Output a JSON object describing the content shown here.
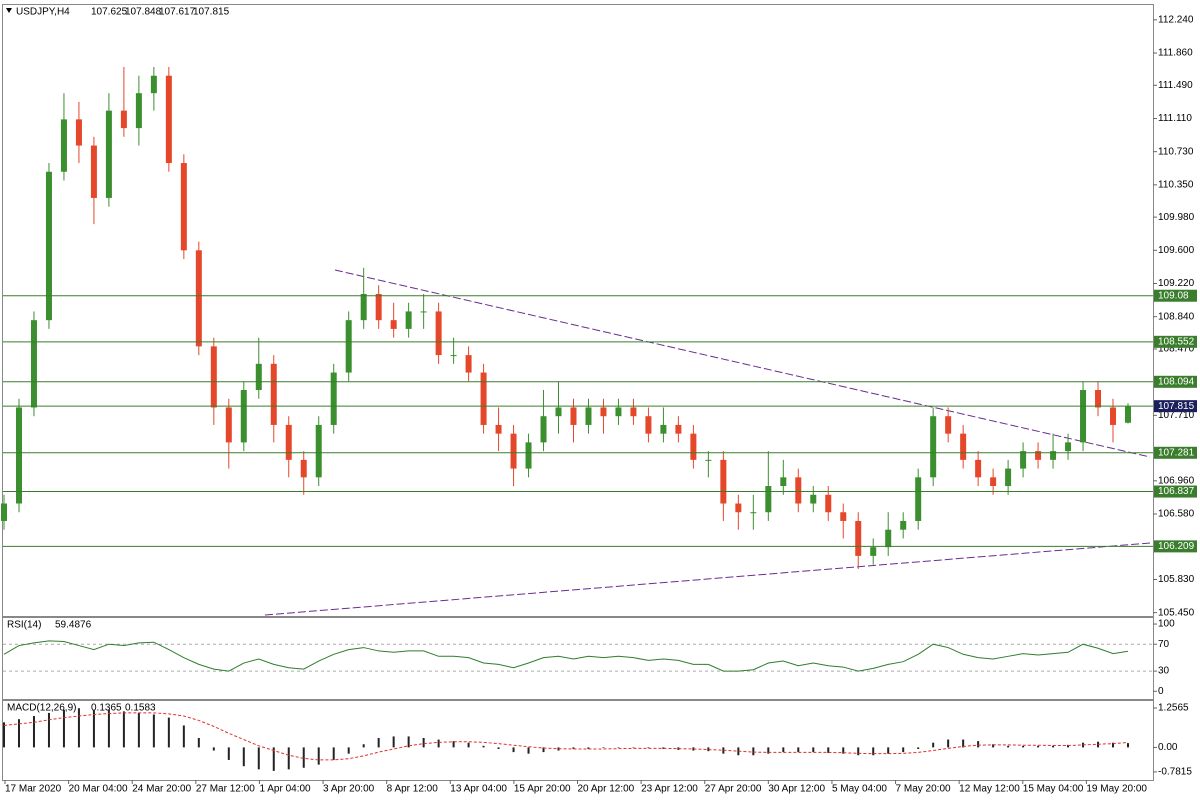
{
  "chart_data": [
    {
      "type": "candlestick",
      "title": "USDJPY,H4",
      "header_values": [
        107.625,
        107.848,
        107.617,
        107.815
      ],
      "open": [
        106.5,
        106.7,
        107.8,
        108.8,
        110.5,
        111.1,
        110.8,
        110.2,
        111.2,
        111.0,
        111.4,
        111.6,
        110.6,
        109.6,
        108.5,
        107.8,
        107.4,
        108.0,
        108.3,
        107.6,
        107.2,
        107.0,
        107.6,
        108.2,
        108.8,
        109.1,
        108.8,
        108.7,
        108.9,
        108.9,
        108.4,
        108.4,
        108.2,
        107.6,
        107.5,
        107.1,
        107.4,
        107.7,
        107.8,
        107.6,
        107.8,
        107.7,
        107.8,
        107.7,
        107.5,
        107.6,
        107.5,
        107.2,
        107.2,
        106.7,
        106.6,
        106.6,
        106.9,
        107.0,
        106.7,
        106.8,
        106.6,
        106.5,
        106.1,
        106.2,
        106.4,
        106.5,
        107.0,
        107.7,
        107.5,
        107.2,
        107.0,
        106.9,
        107.1,
        107.3,
        107.2,
        107.3,
        107.4,
        108.0,
        107.8,
        107.625
      ],
      "high": [
        106.8,
        107.9,
        108.9,
        110.6,
        111.4,
        111.3,
        110.9,
        111.4,
        111.7,
        111.6,
        111.7,
        111.7,
        110.7,
        109.7,
        108.6,
        107.9,
        108.1,
        108.6,
        108.4,
        107.7,
        107.3,
        107.7,
        108.3,
        108.9,
        109.4,
        109.2,
        109.0,
        109.0,
        109.1,
        109.0,
        108.6,
        108.5,
        108.3,
        107.8,
        107.6,
        107.5,
        108.0,
        108.1,
        107.9,
        107.9,
        107.9,
        107.9,
        107.9,
        107.8,
        107.8,
        107.7,
        107.6,
        107.3,
        107.3,
        106.8,
        106.8,
        107.3,
        107.2,
        107.1,
        106.9,
        106.9,
        106.7,
        106.6,
        106.3,
        106.6,
        106.6,
        107.1,
        107.8,
        107.8,
        107.6,
        107.3,
        107.1,
        107.2,
        107.4,
        107.4,
        107.5,
        107.5,
        108.1,
        108.1,
        107.9,
        107.848
      ],
      "low": [
        106.4,
        106.6,
        107.7,
        108.7,
        110.4,
        110.6,
        109.9,
        110.1,
        110.9,
        110.8,
        111.2,
        110.5,
        109.5,
        108.4,
        107.6,
        107.1,
        107.3,
        107.9,
        107.4,
        107.0,
        106.8,
        106.9,
        107.5,
        108.1,
        108.7,
        108.7,
        108.6,
        108.6,
        108.7,
        108.3,
        108.3,
        108.1,
        107.5,
        107.3,
        106.9,
        107.0,
        107.3,
        107.5,
        107.4,
        107.5,
        107.5,
        107.6,
        107.6,
        107.4,
        107.4,
        107.4,
        107.1,
        107.0,
        106.5,
        106.4,
        106.4,
        106.5,
        106.8,
        106.6,
        106.6,
        106.5,
        106.3,
        105.95,
        106.0,
        106.1,
        106.3,
        106.4,
        106.9,
        107.4,
        107.1,
        106.9,
        106.8,
        106.8,
        107.0,
        107.1,
        107.1,
        107.2,
        107.3,
        107.7,
        107.4,
        107.617
      ],
      "close": [
        106.7,
        107.8,
        108.8,
        110.5,
        111.1,
        110.8,
        110.2,
        111.2,
        111.0,
        111.4,
        111.6,
        110.6,
        109.6,
        108.5,
        107.8,
        107.4,
        108.0,
        108.3,
        107.6,
        107.2,
        107.0,
        107.6,
        108.2,
        108.8,
        109.1,
        108.8,
        108.7,
        108.9,
        108.9,
        108.4,
        108.4,
        108.2,
        107.6,
        107.5,
        107.1,
        107.4,
        107.7,
        107.8,
        107.6,
        107.8,
        107.7,
        107.8,
        107.7,
        107.5,
        107.6,
        107.5,
        107.2,
        107.2,
        106.7,
        106.6,
        106.6,
        106.9,
        107.0,
        106.7,
        106.8,
        106.6,
        106.5,
        106.1,
        106.2,
        106.4,
        106.5,
        107.0,
        107.7,
        107.5,
        107.2,
        107.0,
        106.9,
        107.1,
        107.3,
        107.2,
        107.3,
        107.4,
        108.0,
        107.8,
        107.6,
        107.815
      ],
      "up_color": "#3b8f2f",
      "down_color": "#e5472b",
      "ylim": [
        105.4,
        112.41
      ],
      "yticks": [
        {
          "value": 112.24,
          "label": "112.240"
        },
        {
          "value": 111.86,
          "label": "111.860"
        },
        {
          "value": 111.49,
          "label": "111.490"
        },
        {
          "value": 111.11,
          "label": "111.110"
        },
        {
          "value": 110.73,
          "label": "110.730"
        },
        {
          "value": 110.35,
          "label": "110.350"
        },
        {
          "value": 109.98,
          "label": "109.980"
        },
        {
          "value": 109.6,
          "label": "109.600"
        },
        {
          "value": 109.22,
          "label": "109.220"
        },
        {
          "value": 108.84,
          "label": "108.840"
        },
        {
          "value": 108.47,
          "label": "108.470"
        },
        {
          "value": 107.71,
          "label": "107.710"
        },
        {
          "value": 106.96,
          "label": "106.960"
        },
        {
          "value": 106.58,
          "label": "106.580"
        },
        {
          "value": 105.83,
          "label": "105.830"
        },
        {
          "value": 105.45,
          "label": "105.450"
        }
      ],
      "levels": [
        109.08,
        108.552,
        108.094,
        107.281,
        106.837,
        106.209
      ],
      "level_color": "#3a7d2c",
      "current_color": "#1b1f5c",
      "xtick_labels": [
        "17 Mar 2020",
        "20 Mar 04:00",
        "24 Mar 20:00",
        "27 Mar 12:00",
        "1 Apr 04:00",
        "3 Apr 20:00",
        "8 Apr 12:00",
        "13 Apr 04:00",
        "15 Apr 20:00",
        "20 Apr 12:00",
        "23 Apr 12:00",
        "27 Apr 20:00",
        "30 Apr 12:00",
        "5 May 04:00",
        "7 May 20:00",
        "12 May 12:00",
        "15 May 04:00",
        "19 May 20:00"
      ]
    },
    {
      "type": "line",
      "title": "RSI(14)",
      "header_values": [
        59.4876
      ],
      "values": [
        55,
        68,
        72,
        75,
        74,
        68,
        62,
        70,
        68,
        72,
        73,
        62,
        50,
        40,
        33,
        30,
        42,
        48,
        40,
        35,
        33,
        45,
        55,
        62,
        65,
        60,
        58,
        60,
        60,
        52,
        52,
        50,
        42,
        40,
        35,
        42,
        50,
        52,
        48,
        52,
        50,
        52,
        50,
        46,
        48,
        46,
        40,
        40,
        30,
        30,
        32,
        42,
        45,
        38,
        42,
        38,
        36,
        30,
        34,
        40,
        44,
        55,
        70,
        65,
        55,
        50,
        48,
        52,
        56,
        54,
        56,
        58,
        70,
        64,
        56,
        59.4876
      ],
      "color": "#2e7d2e",
      "ylim": [
        -13,
        109
      ],
      "yticks": [
        100,
        70,
        30,
        0
      ],
      "levels": [
        70,
        30
      ]
    },
    {
      "type": "macd",
      "title": "MACD(12,26,9)",
      "header_values": [
        0.1365,
        0.1583
      ],
      "series": [
        {
          "color": "#222222",
          "values": [
            0.8,
            0.9,
            1.0,
            1.1,
            1.2,
            1.25,
            1.2,
            1.2,
            1.15,
            1.1,
            1.05,
            0.95,
            0.7,
            0.3,
            -0.1,
            -0.4,
            -0.6,
            -0.7,
            -0.75,
            -0.7,
            -0.65,
            -0.55,
            -0.4,
            -0.2,
            0.1,
            0.3,
            0.35,
            0.35,
            0.3,
            0.25,
            0.2,
            0.15,
            0.05,
            -0.05,
            -0.15,
            -0.2,
            -0.15,
            -0.1,
            -0.05,
            -0.05,
            -0.02,
            0,
            0,
            -0.02,
            -0.05,
            -0.08,
            -0.1,
            -0.12,
            -0.2,
            -0.25,
            -0.25,
            -0.2,
            -0.15,
            -0.15,
            -0.15,
            -0.18,
            -0.2,
            -0.25,
            -0.25,
            -0.2,
            -0.15,
            -0.05,
            0.15,
            0.25,
            0.25,
            0.2,
            0.1,
            0.05,
            0.05,
            0.05,
            0.05,
            0.08,
            0.15,
            0.18,
            0.15,
            0.1365
          ]
        },
        {
          "color": "#e0302a",
          "values": [
            0.7,
            0.75,
            0.8,
            0.88,
            0.95,
            1.0,
            1.05,
            1.08,
            1.1,
            1.1,
            1.1,
            1.07,
            1.0,
            0.86,
            0.67,
            0.45,
            0.25,
            0.05,
            -0.1,
            -0.25,
            -0.35,
            -0.4,
            -0.4,
            -0.36,
            -0.27,
            -0.15,
            -0.05,
            0.05,
            0.12,
            0.16,
            0.18,
            0.18,
            0.16,
            0.12,
            0.07,
            0.02,
            -0.02,
            -0.04,
            -0.05,
            -0.05,
            -0.05,
            -0.04,
            -0.03,
            -0.03,
            -0.03,
            -0.04,
            -0.05,
            -0.07,
            -0.09,
            -0.12,
            -0.15,
            -0.16,
            -0.16,
            -0.16,
            -0.16,
            -0.16,
            -0.17,
            -0.19,
            -0.2,
            -0.2,
            -0.19,
            -0.16,
            -0.1,
            -0.03,
            0.03,
            0.07,
            0.08,
            0.08,
            0.07,
            0.07,
            0.06,
            0.06,
            0.08,
            0.1,
            0.12,
            0.1583
          ]
        }
      ],
      "ylim": [
        -1.04,
        1.48
      ],
      "yticks": [
        1.2565,
        {
          "value": 0,
          "label": "0.00"
        },
        -0.7815
      ]
    }
  ]
}
